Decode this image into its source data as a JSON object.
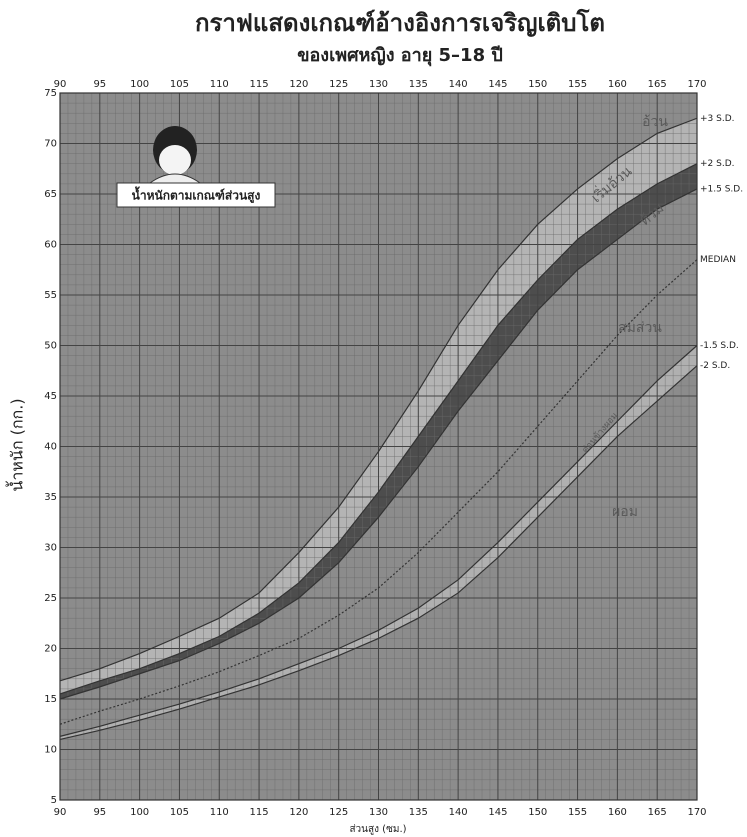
{
  "chart_data": {
    "type": "line",
    "title": "กราฟแสดงเกณฑ์อ้างอิงการเจริญเติบโต",
    "subtitle": "ของเพศหญิง อายุ 5–18 ปี",
    "x_label": "ส่วนสูง (ซม.)",
    "y_label": "น้ำหนัก (กก.)",
    "box_label": "น้ำหนักตามเกณฑ์ส่วนสูง",
    "annotations": [
      "อ้วน",
      "เริ่มอ้วน",
      "ท้วม",
      "สมส่วน",
      "ค่อนข้างผอม",
      "ผอม"
    ],
    "x": [
      90,
      95,
      100,
      105,
      110,
      115,
      120,
      125,
      130,
      135,
      140,
      145,
      150,
      155,
      160,
      165,
      170
    ],
    "series": [
      {
        "name": "+3 S.D.",
        "color": "#333333",
        "fill": "#b4b4b4",
        "values": [
          16.8,
          18,
          19.5,
          21.2,
          23,
          25.5,
          29.5,
          34,
          39.5,
          45.5,
          52,
          57.5,
          62,
          65.5,
          68.5,
          71,
          72.5
        ]
      },
      {
        "name": "+2 S.D.",
        "color": "#333333",
        "fill": "#4d4d4d",
        "values": [
          15.5,
          16.8,
          18,
          19.5,
          21.2,
          23.5,
          26.5,
          30.5,
          35.5,
          41,
          46.5,
          52,
          56.5,
          60.5,
          63.5,
          66,
          68
        ]
      },
      {
        "name": "+1.5 S.D.",
        "color": "#333333",
        "values": [
          15,
          16.2,
          17.5,
          18.8,
          20.5,
          22.5,
          25,
          28.5,
          33,
          38,
          43.5,
          48.5,
          53.5,
          57.5,
          60.5,
          63.5,
          65.5
        ]
      },
      {
        "name": "MEDIAN",
        "color": "#333333",
        "dashed": true,
        "values": [
          12.5,
          13.8,
          15,
          16.3,
          17.7,
          19.3,
          21,
          23.3,
          26,
          29.5,
          33.5,
          37.5,
          42,
          46.5,
          51,
          55,
          58.5
        ]
      },
      {
        "name": "-1.5 S.D.",
        "color": "#333333",
        "fill": "#b0b0b0",
        "values": [
          11.3,
          12.3,
          13.4,
          14.5,
          15.7,
          17,
          18.5,
          20,
          21.8,
          24,
          26.8,
          30.5,
          34.5,
          38.5,
          42.5,
          46.5,
          50
        ]
      },
      {
        "name": "-2 S.D.",
        "color": "#333333",
        "values": [
          11,
          11.9,
          12.9,
          14,
          15.2,
          16.4,
          17.8,
          19.3,
          21,
          23,
          25.5,
          29,
          33,
          37,
          41,
          44.5,
          48
        ]
      }
    ],
    "xlim": [
      90,
      170
    ],
    "ylim": [
      5,
      75
    ],
    "xticks": [
      90,
      95,
      100,
      105,
      110,
      115,
      120,
      125,
      130,
      135,
      140,
      145,
      150,
      155,
      160,
      165,
      170
    ],
    "yticks": [
      5,
      10,
      15,
      20,
      25,
      30,
      35,
      40,
      45,
      50,
      55,
      60,
      65,
      70,
      75
    ],
    "grid": true,
    "background": "#8c8c8c"
  }
}
